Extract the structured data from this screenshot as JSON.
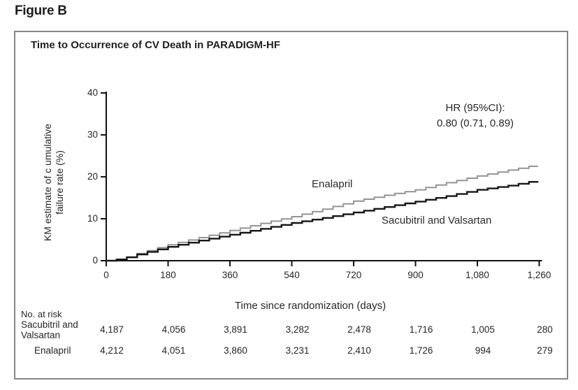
{
  "figure_label": "Figure B",
  "chart": {
    "title": "Time to Occurrence of CV Death in PARADIGM-HF",
    "y_axis_label_line1": "KM estimate of c umulative",
    "y_axis_label_line2": "failure rate (%)",
    "x_axis_title": "Time since randomization (days)",
    "annotation_line1": "HR (95%CI):",
    "annotation_line2": "0.80 (0.71, 0.89)",
    "enalapril_label": "Enalapril",
    "sacubitril_label": "Sacubitril and Valsartan"
  },
  "chart_data": {
    "type": "line",
    "subtype": "kaplan-meier-step",
    "title": "Time to Occurrence of CV Death in PARADIGM-HF",
    "xlabel": "Time since randomization (days)",
    "ylabel": "KM estimate of cumulative failure rate (%)",
    "xlim": [
      0,
      1260
    ],
    "ylim": [
      0,
      40
    ],
    "x_tick_values": [
      0,
      180,
      360,
      540,
      720,
      900,
      1080,
      1260
    ],
    "x_tick_labels": [
      "0",
      "180",
      "360",
      "540",
      "720",
      "900",
      "1,080",
      "1,260"
    ],
    "y_tick_values": [
      0,
      10,
      20,
      30,
      40
    ],
    "y_tick_labels": [
      "0",
      "10",
      "20",
      "30",
      "40"
    ],
    "grid": false,
    "legend_position": "inline-curve-labels",
    "annotation": "HR (95%CI): 0.80 (0.71, 0.89)",
    "hazard_ratio": 0.8,
    "ci_lower": 0.71,
    "ci_upper": 0.89,
    "series": [
      {
        "name": "Enalapril",
        "color": "#949494",
        "stroke_width": 2,
        "x": [
          0,
          30,
          60,
          90,
          180,
          270,
          360,
          450,
          540,
          630,
          720,
          810,
          900,
          990,
          1080,
          1170,
          1230,
          1255
        ],
        "y": [
          0,
          0.3,
          0.9,
          1.7,
          3.8,
          5.5,
          7.2,
          8.9,
          10.5,
          12.3,
          14.2,
          15.6,
          16.9,
          18.6,
          20.2,
          21.6,
          22.5,
          22.6
        ]
      },
      {
        "name": "Sacubitril and Valsartan",
        "color": "#161616",
        "stroke_width": 2.4,
        "x": [
          0,
          30,
          60,
          90,
          180,
          270,
          360,
          450,
          540,
          630,
          720,
          810,
          900,
          990,
          1080,
          1170,
          1230,
          1255
        ],
        "y": [
          0,
          0.3,
          0.8,
          1.5,
          3.3,
          4.8,
          6.2,
          7.6,
          9.0,
          10.2,
          11.5,
          12.8,
          14.1,
          15.4,
          16.9,
          17.9,
          18.8,
          19.0
        ]
      }
    ]
  },
  "risk_table": {
    "header": "No. at risk",
    "rows": [
      {
        "label": "Sacubitril and Valsartan",
        "values": [
          "4,187",
          "4,056",
          "3,891",
          "3,282",
          "2,478",
          "1,716",
          "1,005",
          "280"
        ]
      },
      {
        "label": "Enalapril",
        "values": [
          "4,212",
          "4,051",
          "3,860",
          "3,231",
          "2,410",
          "1,726",
          "994",
          "279"
        ]
      }
    ]
  },
  "colors": {
    "enalapril_line": "#949494",
    "sacubitril_line": "#161616",
    "axis": "#111111",
    "text": "#26262b",
    "box_border": "#858585"
  }
}
